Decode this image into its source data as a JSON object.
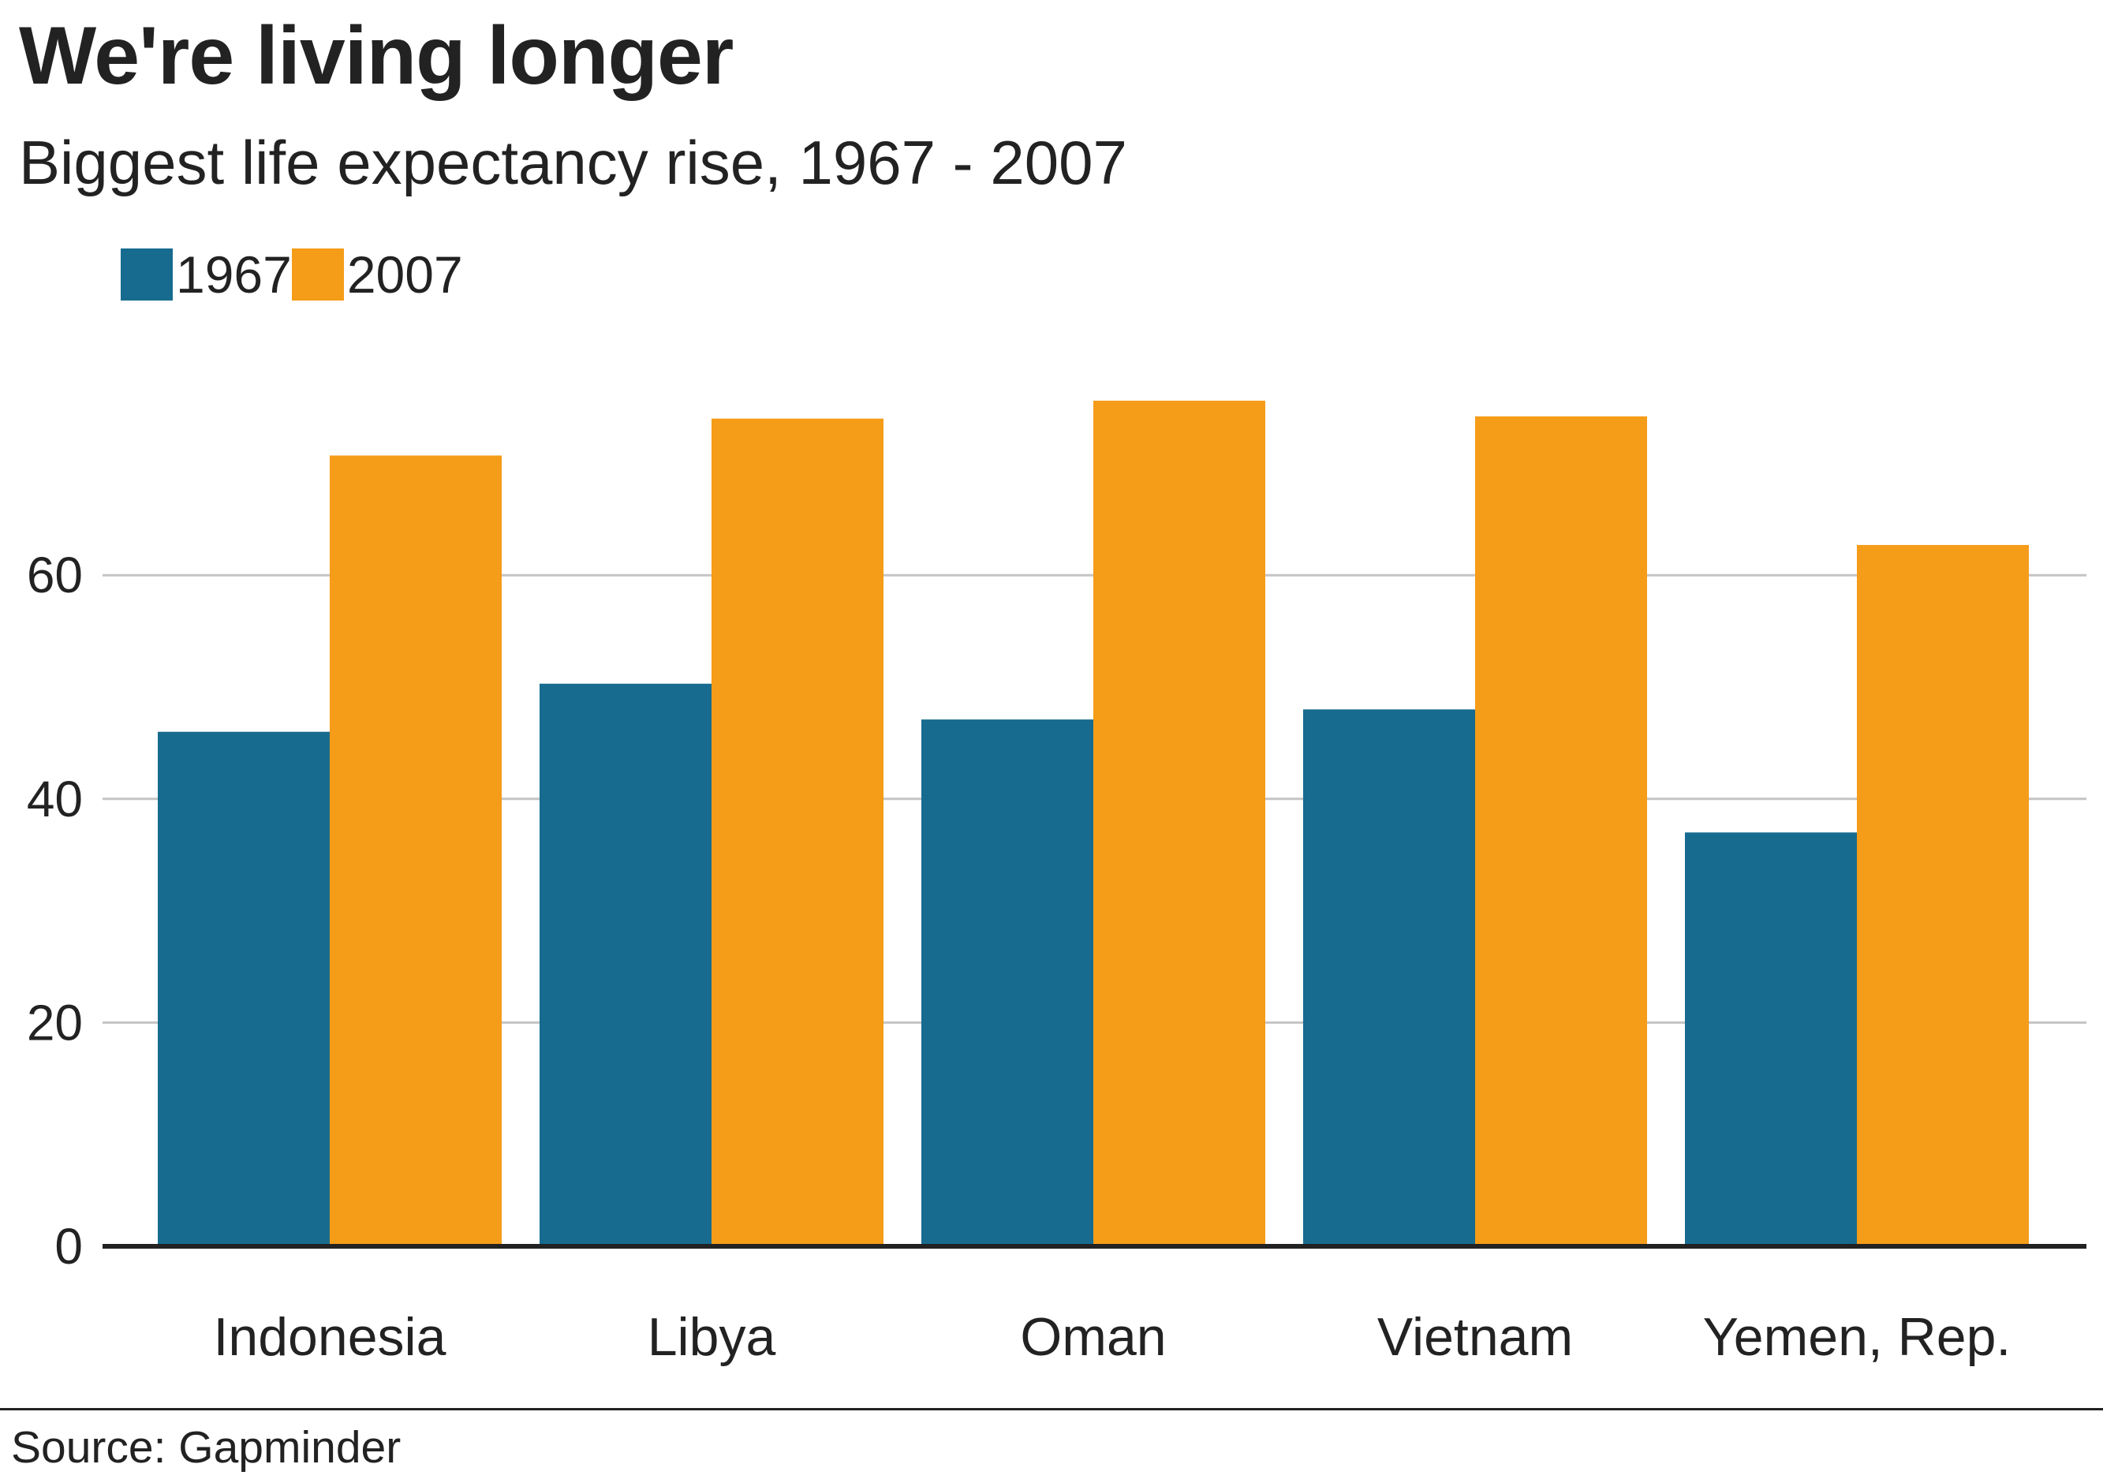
{
  "header": {
    "title": "We're living longer",
    "subtitle": "Biggest life expectancy rise, 1967 - 2007"
  },
  "footer": {
    "source": "Source: Gapminder"
  },
  "colors": {
    "series_1967": "#176b8f",
    "series_2007": "#f59c18",
    "grid": "#c4c4c4",
    "baseline": "#222222",
    "text": "#222222"
  },
  "chart_data": {
    "type": "bar",
    "title": "We're living longer",
    "subtitle": "Biggest life expectancy rise, 1967 - 2007",
    "categories": [
      "Indonesia",
      "Libya",
      "Oman",
      "Vietnam",
      "Yemen, Rep."
    ],
    "series": [
      {
        "name": "1967",
        "values": [
          46,
          50.3,
          47.1,
          48,
          37
        ]
      },
      {
        "name": "2007",
        "values": [
          70.7,
          74,
          75.6,
          74.2,
          62.7
        ]
      }
    ],
    "xlabel": "",
    "ylabel": "",
    "ylim": [
      0,
      80
    ],
    "yticks": [
      0,
      20,
      40,
      60
    ],
    "grid": true,
    "legend": "top-left"
  }
}
